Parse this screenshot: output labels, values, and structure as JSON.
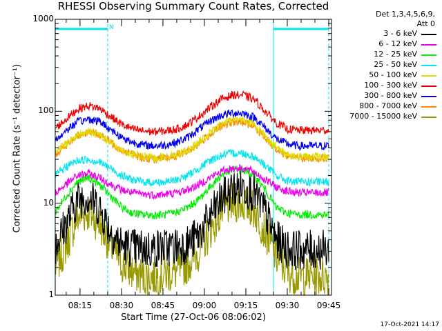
{
  "chart_data": {
    "type": "line",
    "title": "RHESSI Observing Summary Count Rates, Corrected",
    "xlabel": "Start Time (27-Oct-06 08:06:02)",
    "ylabel": "Corrected Count Rate (s⁻¹ detector⁻¹)",
    "yscale": "log",
    "ylim": [
      1,
      1000
    ],
    "xlim": [
      "08:06:02",
      "09:46:00"
    ],
    "x_tick_labels": [
      "08:15",
      "08:30",
      "08:45",
      "09:00",
      "09:15",
      "09:30",
      "09:45"
    ],
    "y_tick_labels": [
      "1",
      "10",
      "100",
      "1000"
    ],
    "legend_header": [
      "Det 1,3,4,5,6,9,",
      "Att 0"
    ],
    "legend_placement": "right",
    "annotations": {
      "night_marker": "N",
      "night_intervals": [
        [
          "08:06",
          "08:25"
        ],
        [
          "09:25",
          "09:45"
        ]
      ],
      "timestamp": "17-Oct-2021 14:17"
    },
    "x": [
      "08:06",
      "08:10",
      "08:14",
      "08:18",
      "08:22",
      "08:26",
      "08:30",
      "08:34",
      "08:38",
      "08:42",
      "08:46",
      "08:50",
      "08:54",
      "08:58",
      "09:02",
      "09:06",
      "09:10",
      "09:14",
      "09:18",
      "09:22",
      "09:26",
      "09:30",
      "09:34",
      "09:38",
      "09:42",
      "09:45"
    ],
    "series": [
      {
        "name": "3 - 6 keV",
        "color": "#000000",
        "values": [
          3.5,
          6,
          11,
          12,
          9,
          5,
          3.5,
          3.3,
          3.2,
          3.2,
          3.3,
          3.4,
          3.6,
          4.5,
          7,
          11,
          14,
          15,
          13,
          8,
          4,
          3.2,
          3.1,
          3.1,
          3.1,
          3.1
        ]
      },
      {
        "name": "6 - 12 keV",
        "color": "#ee00ee",
        "values": [
          13,
          16,
          20,
          21,
          19,
          16,
          14,
          13,
          12.5,
          12.3,
          12.5,
          13,
          14,
          16,
          19,
          22,
          24,
          24,
          22,
          18,
          15,
          13.5,
          13,
          13,
          13,
          13
        ]
      },
      {
        "name": "12 - 25 keV",
        "color": "#00ee00",
        "values": [
          8,
          12,
          17,
          19,
          16,
          12,
          9,
          7.8,
          7.5,
          7.4,
          7.5,
          8,
          9,
          11,
          15,
          20,
          23,
          23,
          20,
          14,
          9,
          7.8,
          7.5,
          7.5,
          7.5,
          7.5
        ]
      },
      {
        "name": "25 - 50 keV",
        "color": "#00e5ee",
        "values": [
          20,
          25,
          29,
          30,
          28,
          24,
          20,
          18,
          17,
          16.8,
          17,
          18,
          20,
          24,
          29,
          33,
          35,
          35,
          32,
          26,
          20,
          17.5,
          17,
          17,
          17,
          17
        ]
      },
      {
        "name": "50 - 100 keV",
        "color": "#dddd00",
        "values": [
          36,
          44,
          55,
          60,
          56,
          46,
          38,
          34,
          32,
          31,
          32,
          34,
          38,
          46,
          58,
          72,
          82,
          82,
          72,
          54,
          40,
          34,
          32,
          32,
          32,
          32
        ]
      },
      {
        "name": "100 - 300 keV",
        "color": "#ee0000",
        "values": [
          65,
          82,
          105,
          115,
          108,
          88,
          72,
          64,
          61,
          60,
          61,
          64,
          72,
          88,
          110,
          135,
          150,
          150,
          135,
          100,
          75,
          64,
          62,
          62,
          62,
          62
        ]
      },
      {
        "name": "300 - 800 keV",
        "color": "#0000ee",
        "values": [
          48,
          62,
          76,
          82,
          78,
          64,
          52,
          46,
          43,
          42,
          43,
          46,
          52,
          64,
          78,
          90,
          96,
          95,
          86,
          66,
          50,
          44,
          42,
          42,
          42,
          42
        ]
      },
      {
        "name": "800 - 7000 keV",
        "color": "#ff8800",
        "values": [
          34,
          42,
          54,
          60,
          56,
          46,
          38,
          34,
          31,
          30,
          31,
          33,
          37,
          44,
          56,
          68,
          76,
          76,
          68,
          52,
          39,
          33,
          31,
          31,
          31,
          31
        ]
      },
      {
        "name": "7000 - 15000 keV",
        "color": "#999900",
        "values": [
          2,
          3.5,
          7,
          8,
          6,
          3.5,
          2.2,
          1.8,
          1.6,
          1.6,
          1.7,
          1.8,
          2.2,
          3,
          5,
          8,
          10,
          10,
          8.5,
          5,
          2.6,
          1.8,
          1.6,
          1.6,
          1.6,
          1.6
        ]
      }
    ]
  }
}
